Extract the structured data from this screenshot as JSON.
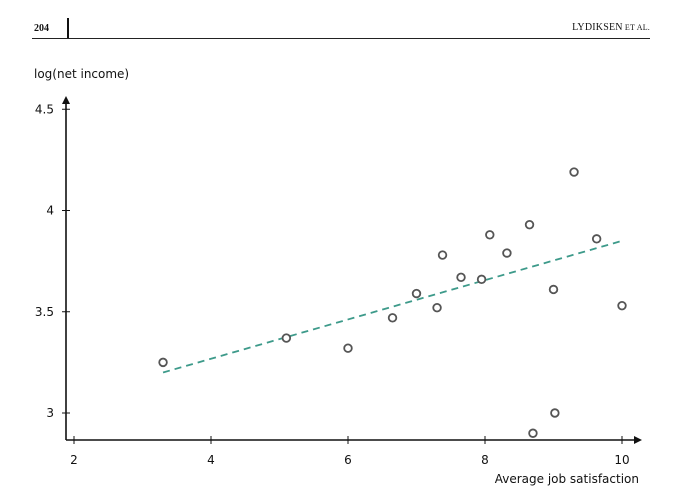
{
  "header": {
    "page_number": "204",
    "running_head_main": "LYDIKSEN",
    "running_head_small": " ET AL."
  },
  "chart_data": {
    "type": "scatter",
    "xlabel": "Average job satisfaction",
    "ylabel": "log(net income)",
    "xlim": [
      1.8,
      10.3
    ],
    "ylim": [
      2.86,
      4.52
    ],
    "xticks": [
      2,
      4,
      6,
      8,
      10
    ],
    "yticks": [
      3,
      3.5,
      4,
      4.5
    ],
    "xtick_labels": [
      "2",
      "4",
      "6",
      "8",
      "10"
    ],
    "ytick_labels": [
      "3",
      "3.5",
      "4",
      "4.5"
    ],
    "grid": false,
    "marker_color": "#555555",
    "trend_color": "#3d9a8a",
    "points": [
      {
        "x": 3.3,
        "y": 3.25
      },
      {
        "x": 5.1,
        "y": 3.37
      },
      {
        "x": 6.0,
        "y": 3.32
      },
      {
        "x": 6.65,
        "y": 3.47
      },
      {
        "x": 7.0,
        "y": 3.59
      },
      {
        "x": 7.3,
        "y": 3.52
      },
      {
        "x": 7.38,
        "y": 3.78
      },
      {
        "x": 7.65,
        "y": 3.67
      },
      {
        "x": 7.95,
        "y": 3.66
      },
      {
        "x": 8.07,
        "y": 3.88
      },
      {
        "x": 8.32,
        "y": 3.79
      },
      {
        "x": 8.65,
        "y": 3.93
      },
      {
        "x": 8.7,
        "y": 2.9
      },
      {
        "x": 9.0,
        "y": 3.61
      },
      {
        "x": 9.02,
        "y": 3.0
      },
      {
        "x": 9.3,
        "y": 4.19
      },
      {
        "x": 9.63,
        "y": 3.86
      },
      {
        "x": 10.0,
        "y": 3.53
      }
    ],
    "trend_line": {
      "x": [
        3.3,
        10.0
      ],
      "y": [
        3.2,
        3.85
      ],
      "style": "dashed"
    }
  }
}
